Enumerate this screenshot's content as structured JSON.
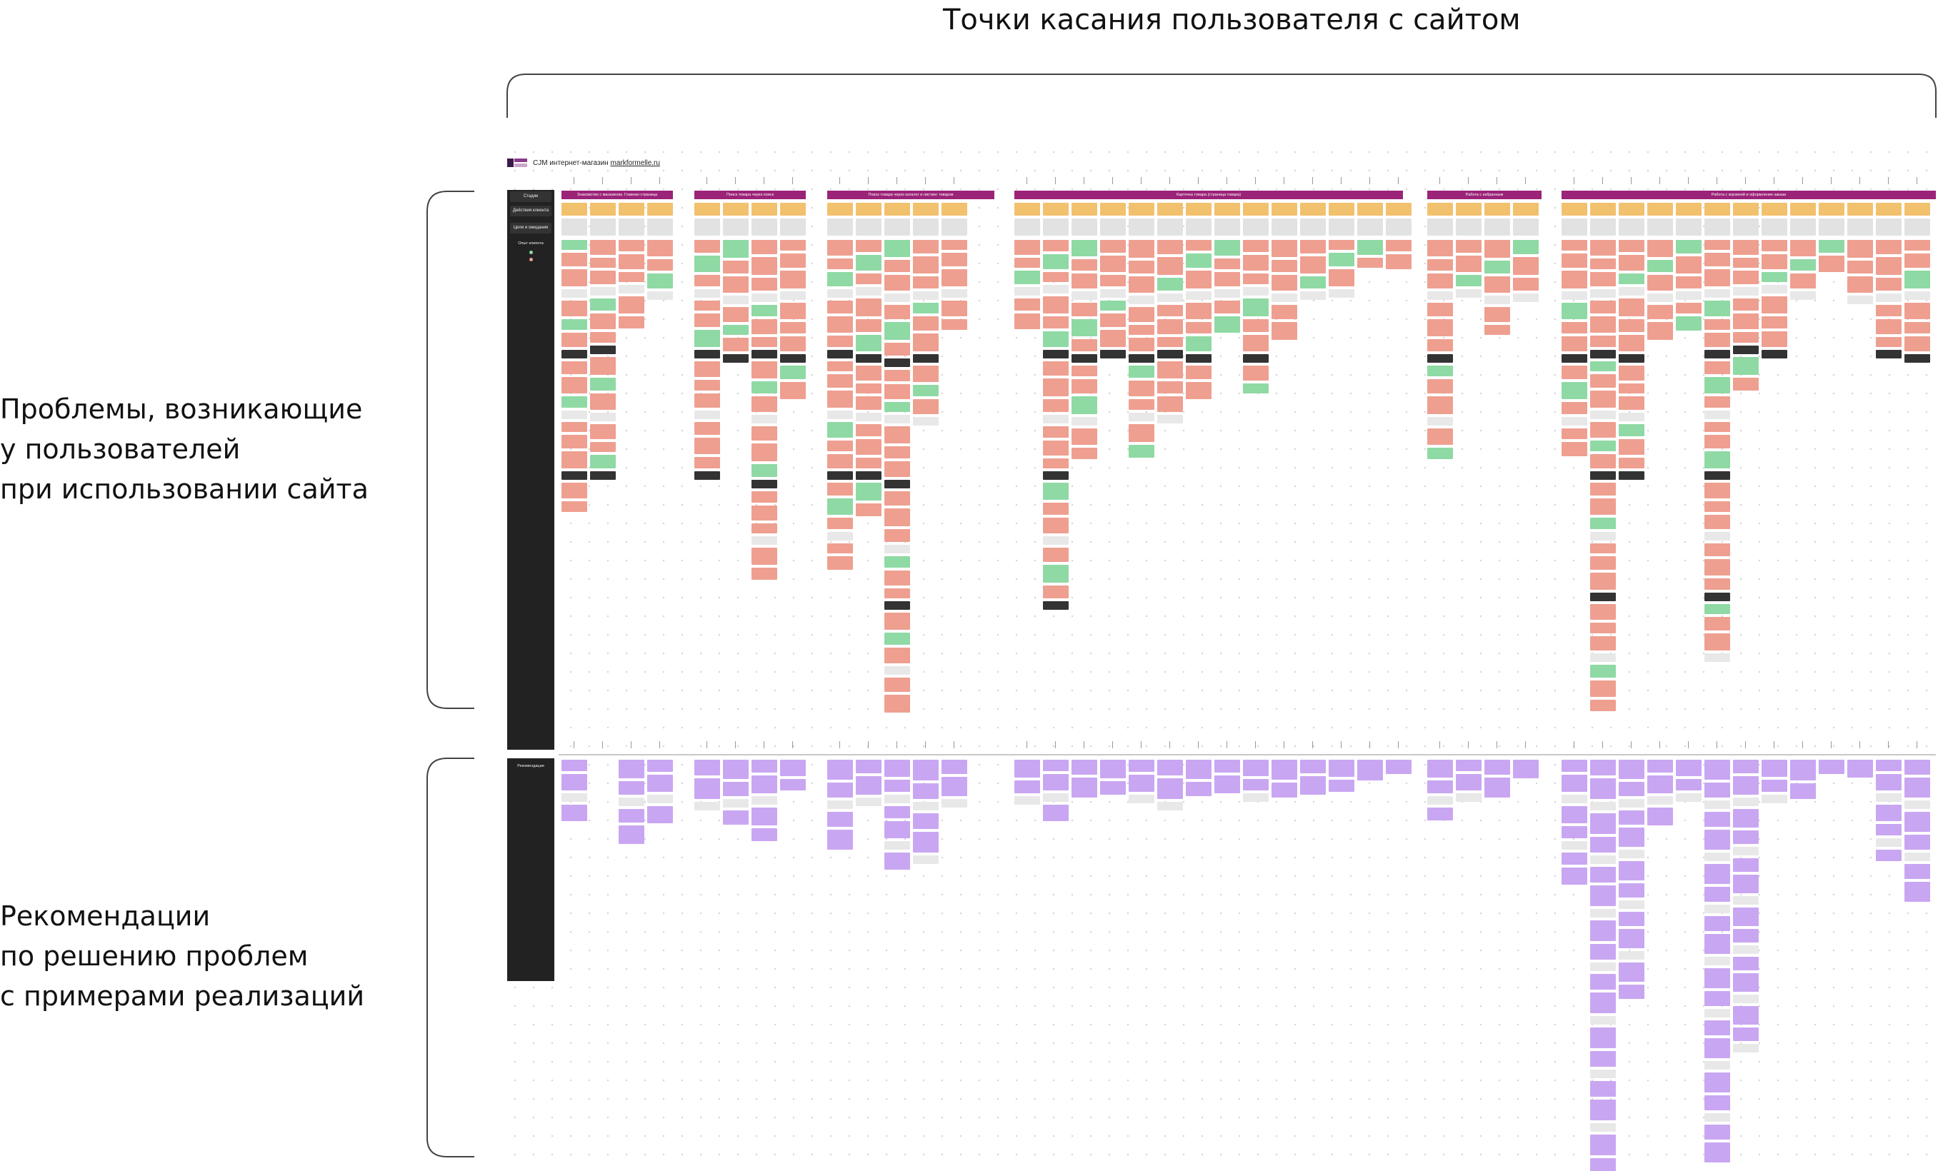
{
  "top_title": "Точки касания пользователя с сайтом",
  "left_annotations": {
    "problems": [
      "Проблемы, возникающие",
      "у пользователей",
      "при использовании сайта"
    ],
    "recommendations": [
      "Рекомендации",
      "по решению проблем",
      "с примерами реализаций"
    ]
  },
  "board": {
    "title_prefix": "CJM интернет-магазин",
    "title_site": "markformelle.ru",
    "side_menu": [
      "Стадии",
      "Действия клиента",
      "Цели и ожидания"
    ],
    "side_section_label": "Опыт клиента",
    "bottom_section_label": "Рекомендации",
    "stages": [
      "Знакомство с магазином. Главная страница",
      "Поиск товара через поиск",
      "Поиск товара через каталог и листинг товаров",
      "Карточка товара (страница товара)",
      "Работа с избранным",
      "Работа с корзиной и оформление заказа"
    ]
  },
  "colors": {
    "stage_header": "#9b2378",
    "actions": "#f2c16e",
    "goals": "#e2e2e2",
    "positive": "#8fd9a4",
    "negative": "#ee9f90",
    "screenshot": "#e8e8e8",
    "dark_screenshot": "#333333",
    "recommendation": "#c9a6f2",
    "side_panel": "#222222"
  }
}
